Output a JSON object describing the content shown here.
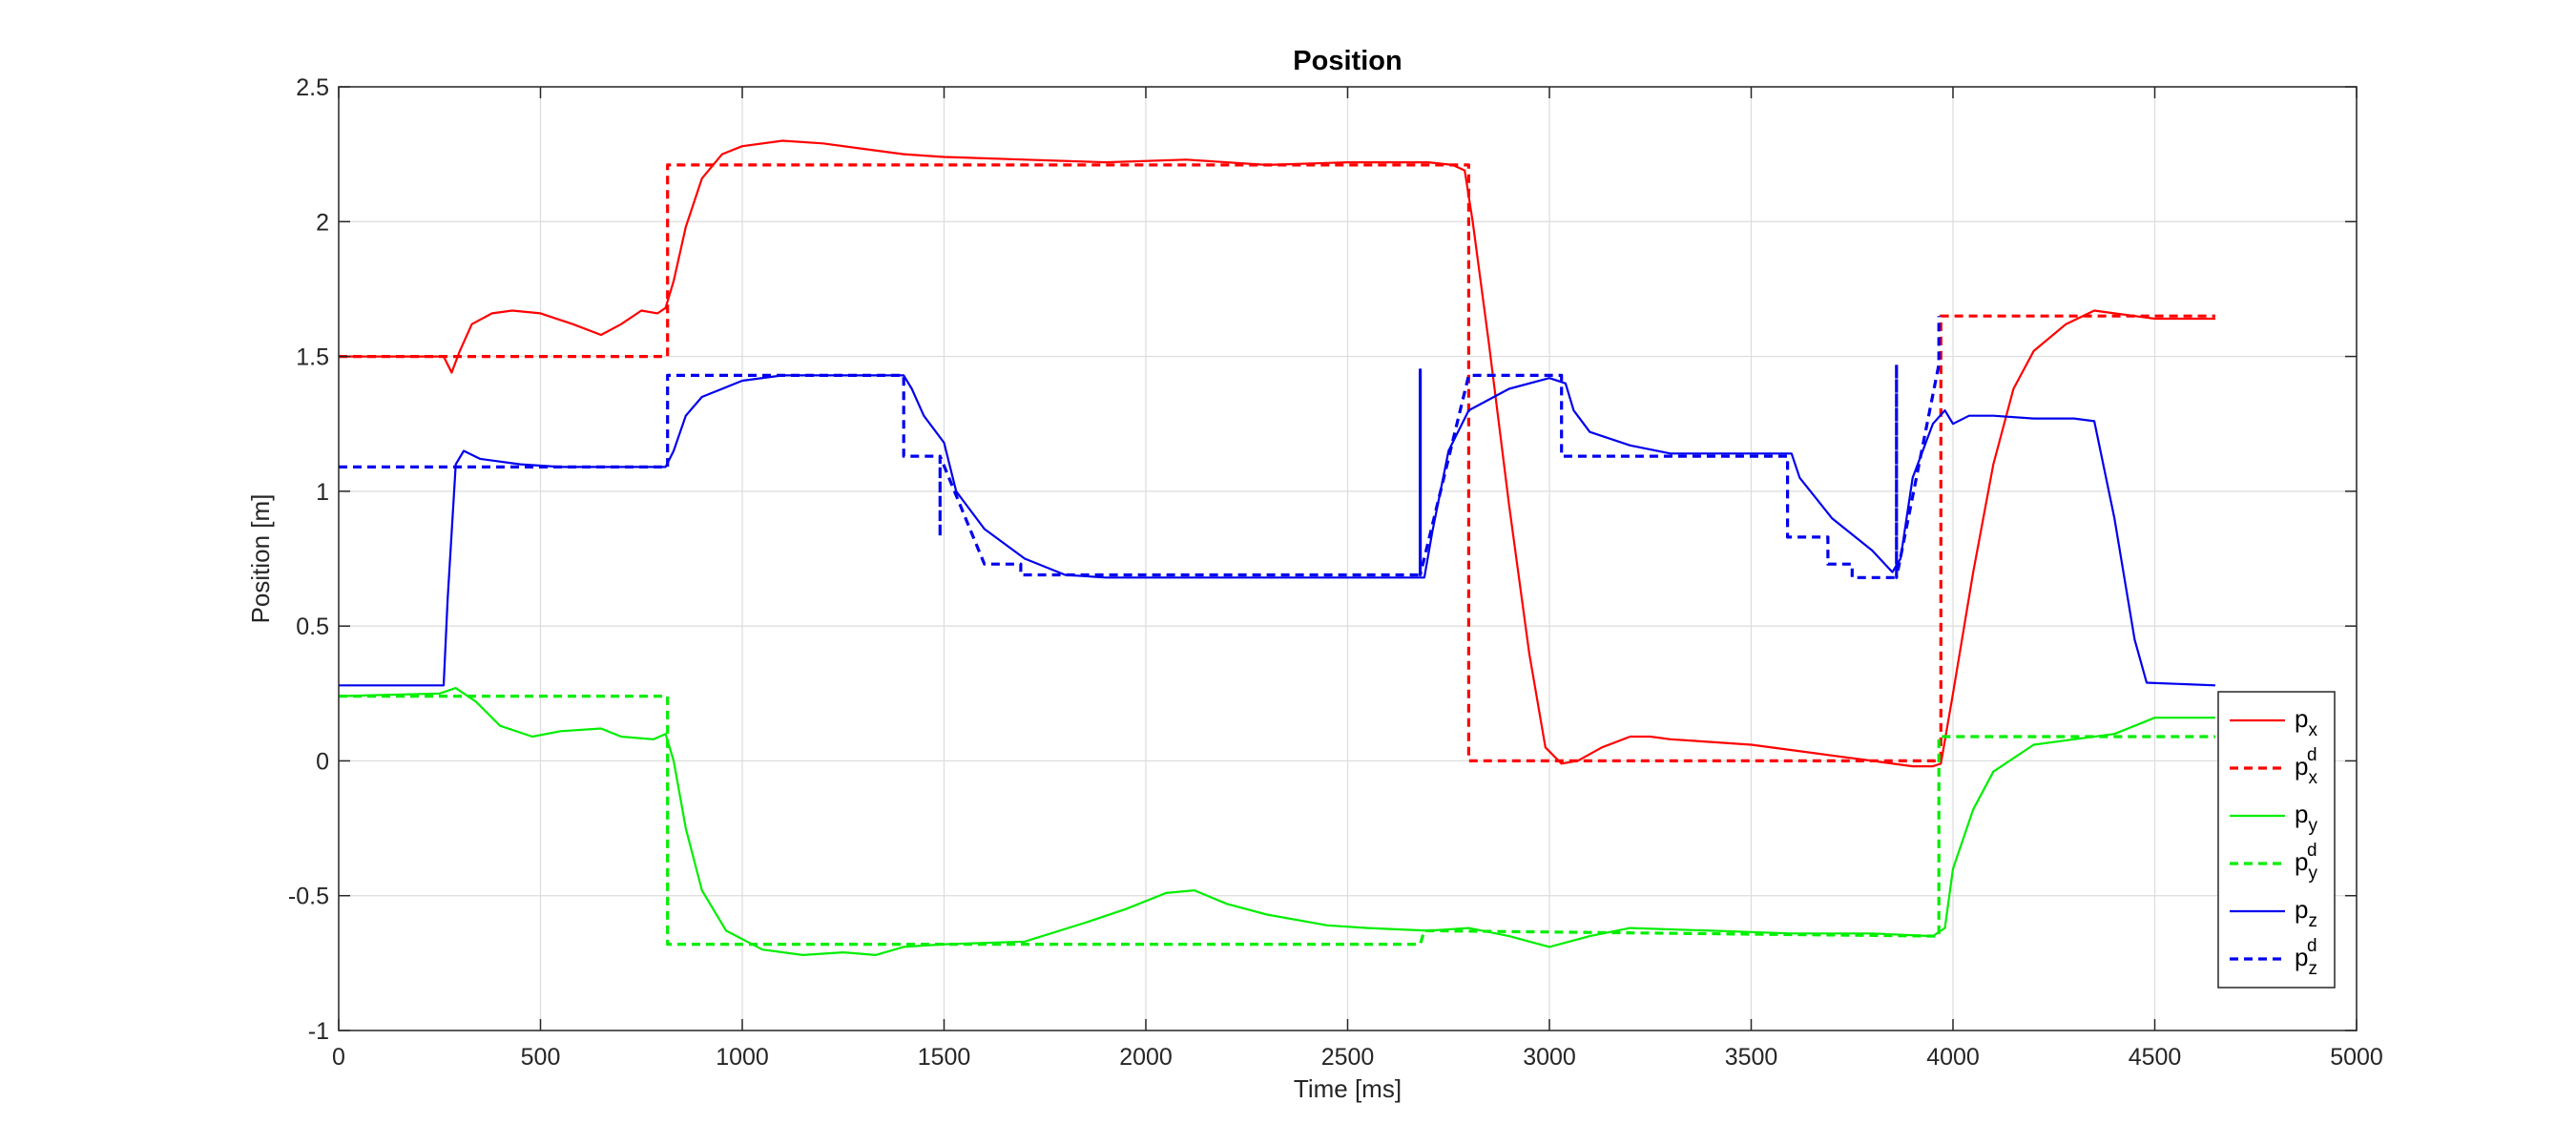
{
  "chart_data": {
    "type": "line",
    "title": "Position",
    "xlabel": "Time [ms]",
    "ylabel": "Position [m]",
    "xlim": [
      0,
      5000
    ],
    "ylim": [
      -1,
      2.5
    ],
    "xticks": [
      0,
      500,
      1000,
      1500,
      2000,
      2500,
      3000,
      3500,
      4000,
      4500,
      5000
    ],
    "yticks": [
      -1,
      -0.5,
      0,
      0.5,
      1,
      1.5,
      2,
      2.5
    ],
    "xtick_labels": [
      "0",
      "500",
      "1000",
      "1500",
      "2000",
      "2500",
      "3000",
      "3500",
      "4000",
      "4500",
      "5000"
    ],
    "ytick_labels": [
      "-1",
      "-0.5",
      "0",
      "0.5",
      "1",
      "1.5",
      "2",
      "2.5"
    ],
    "grid": true,
    "legend_position": "bottom-right",
    "series": [
      {
        "name": "p_x",
        "label_base": "p",
        "label_sub": "x",
        "label_sup": "",
        "color": "#ff0000",
        "style": "solid",
        "points": [
          [
            0,
            1.5
          ],
          [
            260,
            1.5
          ],
          [
            270,
            1.47
          ],
          [
            280,
            1.44
          ],
          [
            300,
            1.52
          ],
          [
            330,
            1.62
          ],
          [
            380,
            1.66
          ],
          [
            430,
            1.67
          ],
          [
            500,
            1.66
          ],
          [
            580,
            1.62
          ],
          [
            650,
            1.58
          ],
          [
            700,
            1.62
          ],
          [
            750,
            1.67
          ],
          [
            790,
            1.66
          ],
          [
            810,
            1.68
          ],
          [
            830,
            1.78
          ],
          [
            860,
            1.98
          ],
          [
            900,
            2.16
          ],
          [
            950,
            2.25
          ],
          [
            1000,
            2.28
          ],
          [
            1100,
            2.3
          ],
          [
            1200,
            2.29
          ],
          [
            1300,
            2.27
          ],
          [
            1400,
            2.25
          ],
          [
            1500,
            2.24
          ],
          [
            1700,
            2.23
          ],
          [
            1900,
            2.22
          ],
          [
            2100,
            2.23
          ],
          [
            2300,
            2.21
          ],
          [
            2500,
            2.22
          ],
          [
            2700,
            2.22
          ],
          [
            2760,
            2.21
          ],
          [
            2790,
            2.19
          ],
          [
            2810,
            2.0
          ],
          [
            2850,
            1.55
          ],
          [
            2900,
            0.95
          ],
          [
            2950,
            0.4
          ],
          [
            2990,
            0.05
          ],
          [
            3030,
            -0.01
          ],
          [
            3070,
            0.0
          ],
          [
            3130,
            0.05
          ],
          [
            3200,
            0.09
          ],
          [
            3250,
            0.09
          ],
          [
            3300,
            0.08
          ],
          [
            3400,
            0.07
          ],
          [
            3500,
            0.06
          ],
          [
            3600,
            0.04
          ],
          [
            3700,
            0.02
          ],
          [
            3800,
            0.0
          ],
          [
            3900,
            -0.02
          ],
          [
            3950,
            -0.02
          ],
          [
            3970,
            -0.01
          ],
          [
            4000,
            0.25
          ],
          [
            4050,
            0.7
          ],
          [
            4100,
            1.1
          ],
          [
            4150,
            1.38
          ],
          [
            4200,
            1.52
          ],
          [
            4280,
            1.62
          ],
          [
            4350,
            1.67
          ],
          [
            4400,
            1.66
          ],
          [
            4450,
            1.65
          ],
          [
            4500,
            1.64
          ],
          [
            4650,
            1.64
          ]
        ]
      },
      {
        "name": "p_x^d",
        "label_base": "p",
        "label_sub": "x",
        "label_sup": "d",
        "color": "#ff0000",
        "style": "dashed",
        "points": [
          [
            0,
            1.5
          ],
          [
            815,
            1.5
          ],
          [
            815,
            2.21
          ],
          [
            820,
            2.21
          ],
          [
            820,
            2.21
          ],
          [
            2800,
            2.21
          ],
          [
            2800,
            0
          ],
          [
            3970,
            0
          ],
          [
            3970,
            1.65
          ],
          [
            4650,
            1.65
          ]
        ]
      },
      {
        "name": "p_y",
        "label_base": "p",
        "label_sub": "y",
        "label_sup": "",
        "color": "#00ee00",
        "style": "solid",
        "points": [
          [
            0,
            0.24
          ],
          [
            250,
            0.25
          ],
          [
            290,
            0.27
          ],
          [
            340,
            0.22
          ],
          [
            400,
            0.13
          ],
          [
            480,
            0.09
          ],
          [
            550,
            0.11
          ],
          [
            650,
            0.12
          ],
          [
            700,
            0.09
          ],
          [
            780,
            0.08
          ],
          [
            810,
            0.1
          ],
          [
            830,
            0.0
          ],
          [
            860,
            -0.25
          ],
          [
            900,
            -0.48
          ],
          [
            960,
            -0.63
          ],
          [
            1050,
            -0.7
          ],
          [
            1150,
            -0.72
          ],
          [
            1250,
            -0.71
          ],
          [
            1330,
            -0.72
          ],
          [
            1400,
            -0.69
          ],
          [
            1500,
            -0.68
          ],
          [
            1700,
            -0.67
          ],
          [
            1850,
            -0.6
          ],
          [
            1950,
            -0.55
          ],
          [
            2050,
            -0.49
          ],
          [
            2120,
            -0.48
          ],
          [
            2200,
            -0.53
          ],
          [
            2300,
            -0.57
          ],
          [
            2450,
            -0.61
          ],
          [
            2550,
            -0.62
          ],
          [
            2700,
            -0.63
          ],
          [
            2800,
            -0.62
          ],
          [
            2900,
            -0.65
          ],
          [
            3000,
            -0.69
          ],
          [
            3100,
            -0.65
          ],
          [
            3200,
            -0.62
          ],
          [
            3400,
            -0.63
          ],
          [
            3600,
            -0.64
          ],
          [
            3800,
            -0.64
          ],
          [
            3950,
            -0.65
          ],
          [
            3980,
            -0.62
          ],
          [
            4000,
            -0.4
          ],
          [
            4050,
            -0.18
          ],
          [
            4100,
            -0.04
          ],
          [
            4200,
            0.06
          ],
          [
            4300,
            0.08
          ],
          [
            4400,
            0.1
          ],
          [
            4450,
            0.13
          ],
          [
            4500,
            0.16
          ],
          [
            4650,
            0.16
          ]
        ]
      },
      {
        "name": "p_y^d",
        "label_base": "p",
        "label_sub": "y",
        "label_sup": "d",
        "color": "#00ee00",
        "style": "dashed",
        "points": [
          [
            0,
            0.24
          ],
          [
            815,
            0.24
          ],
          [
            815,
            -0.68
          ],
          [
            2680,
            -0.68
          ],
          [
            2690,
            -0.63
          ],
          [
            3965,
            -0.65
          ],
          [
            3965,
            0.09
          ],
          [
            4650,
            0.09
          ]
        ]
      },
      {
        "name": "p_z",
        "label_base": "p",
        "label_sub": "z",
        "label_sup": "",
        "color": "#0000ee",
        "style": "solid",
        "points": [
          [
            0,
            0.28
          ],
          [
            260,
            0.28
          ],
          [
            270,
            0.6
          ],
          [
            290,
            1.1
          ],
          [
            310,
            1.15
          ],
          [
            350,
            1.12
          ],
          [
            450,
            1.1
          ],
          [
            550,
            1.09
          ],
          [
            650,
            1.09
          ],
          [
            750,
            1.09
          ],
          [
            810,
            1.09
          ],
          [
            830,
            1.15
          ],
          [
            860,
            1.28
          ],
          [
            900,
            1.35
          ],
          [
            1000,
            1.41
          ],
          [
            1100,
            1.43
          ],
          [
            1300,
            1.43
          ],
          [
            1400,
            1.43
          ],
          [
            1420,
            1.38
          ],
          [
            1450,
            1.28
          ],
          [
            1500,
            1.18
          ],
          [
            1530,
            1.0
          ],
          [
            1600,
            0.86
          ],
          [
            1700,
            0.75
          ],
          [
            1800,
            0.69
          ],
          [
            1900,
            0.68
          ],
          [
            2100,
            0.68
          ],
          [
            2300,
            0.68
          ],
          [
            2500,
            0.68
          ],
          [
            2690,
            0.68
          ],
          [
            2710,
            0.85
          ],
          [
            2750,
            1.15
          ],
          [
            2800,
            1.3
          ],
          [
            2900,
            1.38
          ],
          [
            3000,
            1.42
          ],
          [
            3040,
            1.4
          ],
          [
            3060,
            1.3
          ],
          [
            3100,
            1.22
          ],
          [
            3200,
            1.17
          ],
          [
            3300,
            1.14
          ],
          [
            3500,
            1.14
          ],
          [
            3600,
            1.14
          ],
          [
            3620,
            1.05
          ],
          [
            3700,
            0.9
          ],
          [
            3800,
            0.78
          ],
          [
            3850,
            0.7
          ],
          [
            3870,
            0.75
          ],
          [
            3900,
            1.05
          ],
          [
            3950,
            1.25
          ],
          [
            3980,
            1.3
          ],
          [
            4000,
            1.25
          ],
          [
            4040,
            1.28
          ],
          [
            4100,
            1.28
          ],
          [
            4200,
            1.27
          ],
          [
            4300,
            1.27
          ],
          [
            4350,
            1.26
          ],
          [
            4400,
            0.9
          ],
          [
            4450,
            0.45
          ],
          [
            4480,
            0.29
          ],
          [
            4650,
            0.28
          ]
        ]
      },
      {
        "name": "p_z^d",
        "label_base": "p",
        "label_sub": "z",
        "label_sup": "d",
        "color": "#0000ee",
        "style": "dashed",
        "points": [
          [
            0,
            1.09
          ],
          [
            815,
            1.09
          ],
          [
            815,
            1.43
          ],
          [
            1400,
            1.43
          ],
          [
            1400,
            1.13
          ],
          [
            1490,
            1.13
          ],
          [
            1490,
            0.83
          ],
          [
            1490,
            1.13
          ],
          [
            1600,
            0.73
          ],
          [
            1690,
            0.73
          ],
          [
            1690,
            0.69
          ],
          [
            2680,
            0.69
          ],
          [
            2680,
            1.45
          ],
          [
            2680,
            0.69
          ],
          [
            2800,
            1.43
          ],
          [
            3030,
            1.43
          ],
          [
            3030,
            1.13
          ],
          [
            3590,
            1.13
          ],
          [
            3590,
            0.83
          ],
          [
            3690,
            0.83
          ],
          [
            3690,
            0.73
          ],
          [
            3750,
            0.73
          ],
          [
            3750,
            0.68
          ],
          [
            3860,
            0.68
          ],
          [
            3860,
            1.47
          ],
          [
            3860,
            0.68
          ],
          [
            3965,
            1.47
          ],
          [
            3965,
            1.65
          ]
        ]
      }
    ]
  }
}
